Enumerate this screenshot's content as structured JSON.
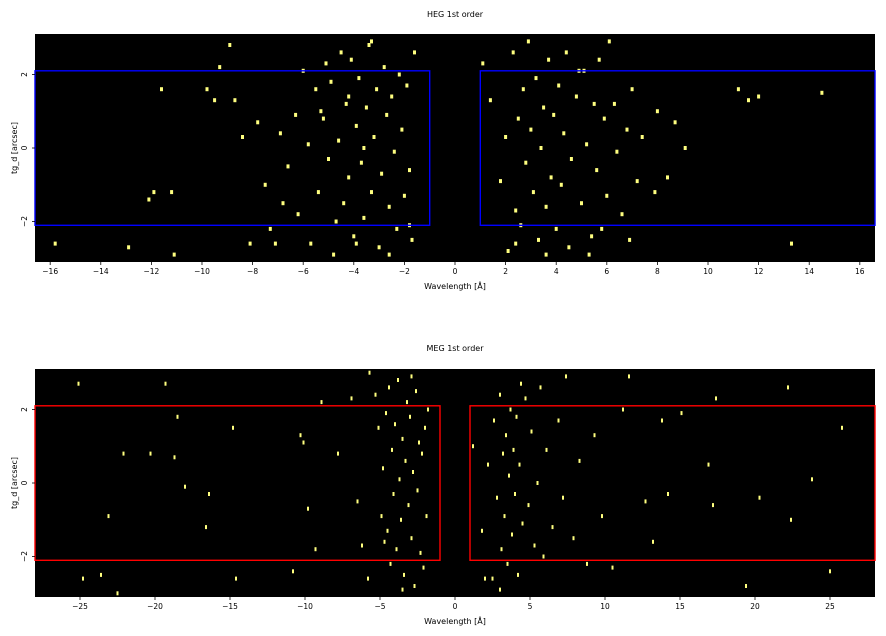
{
  "colors": {
    "background": "#000000",
    "events": "#ffff80",
    "heg_region": "#0000ff",
    "meg_region": "#ff0000"
  },
  "chart_data": [
    {
      "type": "scatter",
      "title": "HEG 1st order",
      "xlabel": "Wavelength [Å]",
      "ylabel": "tg_d [arcsec]",
      "xlim": [
        -16.6,
        16.6
      ],
      "ylim": [
        -3.1,
        3.1
      ],
      "xticks": [
        -16,
        -14,
        -12,
        -10,
        -8,
        -6,
        -4,
        -2,
        0,
        2,
        4,
        6,
        8,
        10,
        12,
        14,
        16
      ],
      "yticks": [
        -2,
        0,
        2
      ],
      "grid": false,
      "region_color": "#0000ff",
      "regions": [
        {
          "x": [
            -16.6,
            -1.0
          ],
          "y": [
            -2.1,
            2.1
          ]
        },
        {
          "x": [
            1.0,
            16.6
          ],
          "y": [
            -2.1,
            2.1
          ]
        }
      ],
      "points": [
        [
          -15.8,
          -2.6
        ],
        [
          -12.9,
          -2.7
        ],
        [
          -12.1,
          -1.4
        ],
        [
          -11.9,
          -1.2
        ],
        [
          -11.6,
          1.6
        ],
        [
          -11.2,
          -1.2
        ],
        [
          -11.1,
          -2.9
        ],
        [
          -8.9,
          2.8
        ],
        [
          -9.8,
          1.6
        ],
        [
          -9.5,
          1.3
        ],
        [
          -9.3,
          2.2
        ],
        [
          -8.7,
          1.3
        ],
        [
          -8.4,
          0.3
        ],
        [
          -8.1,
          -2.6
        ],
        [
          -7.8,
          0.7
        ],
        [
          -7.5,
          -1.0
        ],
        [
          -7.3,
          -2.2
        ],
        [
          -7.1,
          -2.6
        ],
        [
          -6.9,
          0.4
        ],
        [
          -6.8,
          -1.5
        ],
        [
          -6.6,
          -0.5
        ],
        [
          -6.3,
          0.9
        ],
        [
          -6.2,
          -1.8
        ],
        [
          -6.0,
          2.1
        ],
        [
          -5.7,
          -2.6
        ],
        [
          -5.5,
          1.6
        ],
        [
          -5.4,
          -1.2
        ],
        [
          -5.2,
          0.8
        ],
        [
          -5.1,
          2.3
        ],
        [
          -5.0,
          -0.3
        ],
        [
          -4.9,
          1.8
        ],
        [
          -4.7,
          -2.0
        ],
        [
          -4.6,
          0.2
        ],
        [
          -4.5,
          2.6
        ],
        [
          -4.4,
          -1.5
        ],
        [
          -4.3,
          1.2
        ],
        [
          -4.2,
          -0.8
        ],
        [
          -4.1,
          2.4
        ],
        [
          -4.0,
          -2.4
        ],
        [
          -3.9,
          0.6
        ],
        [
          -3.8,
          1.9
        ],
        [
          -3.7,
          -0.4
        ],
        [
          -3.6,
          -1.9
        ],
        [
          -3.5,
          1.1
        ],
        [
          -3.4,
          2.8
        ],
        [
          -3.3,
          -1.2
        ],
        [
          -3.2,
          0.3
        ],
        [
          -3.1,
          1.6
        ],
        [
          -3.0,
          -2.7
        ],
        [
          -2.9,
          -0.7
        ],
        [
          -2.8,
          2.2
        ],
        [
          -2.7,
          0.9
        ],
        [
          -2.6,
          -1.6
        ],
        [
          -2.5,
          1.4
        ],
        [
          -2.4,
          -0.1
        ],
        [
          -2.3,
          -2.2
        ],
        [
          -2.2,
          2.0
        ],
        [
          -2.1,
          0.5
        ],
        [
          -2.0,
          -1.3
        ],
        [
          -1.9,
          1.7
        ],
        [
          -1.8,
          -0.6
        ],
        [
          -1.7,
          -2.5
        ],
        [
          -1.6,
          2.6
        ],
        [
          -5.8,
          0.1
        ],
        [
          -4.8,
          -2.9
        ],
        [
          -3.3,
          2.9
        ],
        [
          -2.6,
          -2.9
        ],
        [
          -4.2,
          1.4
        ],
        [
          -3.6,
          0.0
        ],
        [
          -5.3,
          1.0
        ],
        [
          -1.8,
          -2.1
        ],
        [
          -3.9,
          -2.6
        ],
        [
          1.1,
          2.3
        ],
        [
          1.4,
          1.3
        ],
        [
          1.8,
          -0.9
        ],
        [
          2.0,
          0.3
        ],
        [
          2.1,
          -2.8
        ],
        [
          2.3,
          2.6
        ],
        [
          2.4,
          -1.7
        ],
        [
          2.5,
          0.8
        ],
        [
          2.6,
          -2.1
        ],
        [
          2.7,
          1.6
        ],
        [
          2.8,
          -0.4
        ],
        [
          2.9,
          2.9
        ],
        [
          3.0,
          0.5
        ],
        [
          3.1,
          -1.2
        ],
        [
          3.2,
          1.9
        ],
        [
          3.3,
          -2.5
        ],
        [
          3.4,
          0.0
        ],
        [
          3.5,
          1.1
        ],
        [
          3.6,
          -1.6
        ],
        [
          3.7,
          2.4
        ],
        [
          3.8,
          -0.8
        ],
        [
          3.9,
          0.9
        ],
        [
          4.0,
          -2.2
        ],
        [
          4.1,
          1.7
        ],
        [
          4.2,
          -1.0
        ],
        [
          4.3,
          0.4
        ],
        [
          4.4,
          2.6
        ],
        [
          4.5,
          -2.7
        ],
        [
          4.6,
          -0.3
        ],
        [
          4.8,
          1.4
        ],
        [
          5.0,
          -1.5
        ],
        [
          5.1,
          2.1
        ],
        [
          5.2,
          0.1
        ],
        [
          5.4,
          -2.4
        ],
        [
          5.5,
          1.2
        ],
        [
          5.6,
          -0.6
        ],
        [
          5.7,
          2.4
        ],
        [
          5.8,
          -2.2
        ],
        [
          5.9,
          0.8
        ],
        [
          6.0,
          -1.3
        ],
        [
          6.1,
          2.9
        ],
        [
          6.3,
          1.2
        ],
        [
          6.4,
          -0.1
        ],
        [
          6.6,
          -1.8
        ],
        [
          6.8,
          0.5
        ],
        [
          6.9,
          -2.5
        ],
        [
          7.0,
          1.6
        ],
        [
          7.2,
          -0.9
        ],
        [
          7.4,
          0.3
        ],
        [
          7.9,
          -1.2
        ],
        [
          8.0,
          1.0
        ],
        [
          8.4,
          -0.8
        ],
        [
          8.7,
          0.7
        ],
        [
          9.1,
          0.0
        ],
        [
          11.2,
          1.6
        ],
        [
          11.6,
          1.3
        ],
        [
          12.0,
          1.4
        ],
        [
          13.3,
          -2.6
        ],
        [
          14.5,
          1.5
        ],
        [
          3.6,
          -2.9
        ],
        [
          2.4,
          -2.6
        ],
        [
          5.3,
          -2.9
        ],
        [
          4.9,
          2.1
        ]
      ]
    },
    {
      "type": "scatter",
      "title": "MEG 1st order",
      "xlabel": "Wavelength [Å]",
      "ylabel": "tg_d [arcsec]",
      "xlim": [
        -28,
        28
      ],
      "ylim": [
        -3.1,
        3.1
      ],
      "xticks": [
        -25,
        -20,
        -15,
        -10,
        -5,
        0,
        5,
        10,
        15,
        20,
        25
      ],
      "yticks": [
        -2,
        0,
        2
      ],
      "grid": false,
      "region_color": "#ff0000",
      "regions": [
        {
          "x": [
            -28,
            -1.0
          ],
          "y": [
            -2.1,
            2.1
          ]
        },
        {
          "x": [
            1.0,
            28
          ],
          "y": [
            -2.1,
            2.1
          ]
        }
      ],
      "points": [
        [
          -25.1,
          2.7
        ],
        [
          -24.8,
          -2.6
        ],
        [
          -23.6,
          -2.5
        ],
        [
          -22.5,
          -3.0
        ],
        [
          -23.1,
          -0.9
        ],
        [
          -22.1,
          0.8
        ],
        [
          -20.3,
          0.8
        ],
        [
          -19.3,
          2.7
        ],
        [
          -18.5,
          1.8
        ],
        [
          -18.7,
          0.7
        ],
        [
          -18.0,
          -0.1
        ],
        [
          -16.6,
          -1.2
        ],
        [
          -16.4,
          -0.3
        ],
        [
          -14.8,
          1.5
        ],
        [
          -14.6,
          -2.6
        ],
        [
          -10.8,
          -2.4
        ],
        [
          -10.3,
          1.3
        ],
        [
          -10.1,
          1.1
        ],
        [
          -9.8,
          -0.7
        ],
        [
          -9.3,
          -1.8
        ],
        [
          -8.9,
          2.2
        ],
        [
          -7.8,
          0.8
        ],
        [
          -6.9,
          2.3
        ],
        [
          -6.5,
          -0.5
        ],
        [
          -6.2,
          -1.7
        ],
        [
          -5.8,
          -2.6
        ],
        [
          -5.7,
          3.0
        ],
        [
          -5.3,
          2.4
        ],
        [
          -5.1,
          1.5
        ],
        [
          -4.9,
          -0.9
        ],
        [
          -4.8,
          0.4
        ],
        [
          -4.6,
          1.9
        ],
        [
          -4.5,
          -1.3
        ],
        [
          -4.4,
          2.6
        ],
        [
          -4.3,
          -2.2
        ],
        [
          -4.2,
          0.9
        ],
        [
          -4.1,
          -0.3
        ],
        [
          -4.0,
          1.6
        ],
        [
          -3.9,
          -1.8
        ],
        [
          -3.8,
          2.8
        ],
        [
          -3.7,
          0.1
        ],
        [
          -3.6,
          -1.0
        ],
        [
          -3.5,
          1.2
        ],
        [
          -3.4,
          -2.5
        ],
        [
          -3.3,
          0.6
        ],
        [
          -3.2,
          2.2
        ],
        [
          -3.1,
          -0.6
        ],
        [
          -3.0,
          1.8
        ],
        [
          -2.9,
          -1.5
        ],
        [
          -2.8,
          0.3
        ],
        [
          -2.7,
          -2.8
        ],
        [
          -2.6,
          2.5
        ],
        [
          -2.5,
          -0.2
        ],
        [
          -2.4,
          1.1
        ],
        [
          -2.3,
          -1.9
        ],
        [
          -2.2,
          0.8
        ],
        [
          -2.1,
          -2.3
        ],
        [
          -2.0,
          1.5
        ],
        [
          -1.9,
          -0.9
        ],
        [
          -1.8,
          2.0
        ],
        [
          -3.5,
          -2.9
        ],
        [
          -4.7,
          -1.6
        ],
        [
          -2.9,
          2.9
        ],
        [
          1.2,
          1.0
        ],
        [
          1.8,
          -1.3
        ],
        [
          2.2,
          0.5
        ],
        [
          2.5,
          -2.6
        ],
        [
          2.6,
          1.7
        ],
        [
          2.8,
          -0.4
        ],
        [
          3.0,
          2.4
        ],
        [
          3.1,
          -1.8
        ],
        [
          3.2,
          0.8
        ],
        [
          3.3,
          -0.9
        ],
        [
          3.4,
          1.3
        ],
        [
          3.5,
          -2.2
        ],
        [
          3.6,
          0.2
        ],
        [
          3.7,
          2.0
        ],
        [
          3.8,
          -1.4
        ],
        [
          3.9,
          0.9
        ],
        [
          4.0,
          -0.3
        ],
        [
          4.1,
          1.8
        ],
        [
          4.2,
          -2.5
        ],
        [
          4.3,
          0.5
        ],
        [
          4.5,
          -1.1
        ],
        [
          4.7,
          2.3
        ],
        [
          4.9,
          -0.6
        ],
        [
          5.1,
          1.4
        ],
        [
          5.3,
          -1.7
        ],
        [
          5.5,
          0.0
        ],
        [
          5.7,
          2.6
        ],
        [
          5.9,
          -2.0
        ],
        [
          6.1,
          0.9
        ],
        [
          6.5,
          -1.2
        ],
        [
          6.9,
          1.7
        ],
        [
          7.2,
          -0.4
        ],
        [
          7.4,
          2.9
        ],
        [
          7.9,
          -1.5
        ],
        [
          8.3,
          0.6
        ],
        [
          8.8,
          -2.2
        ],
        [
          9.3,
          1.3
        ],
        [
          9.8,
          -0.9
        ],
        [
          10.5,
          -2.3
        ],
        [
          11.2,
          2.0
        ],
        [
          11.6,
          2.9
        ],
        [
          12.7,
          -0.5
        ],
        [
          13.2,
          -1.6
        ],
        [
          13.8,
          1.7
        ],
        [
          14.2,
          -0.3
        ],
        [
          15.1,
          1.9
        ],
        [
          16.9,
          0.5
        ],
        [
          17.2,
          -0.6
        ],
        [
          17.4,
          2.3
        ],
        [
          19.4,
          -2.8
        ],
        [
          20.3,
          -0.4
        ],
        [
          22.2,
          2.6
        ],
        [
          22.4,
          -1.0
        ],
        [
          23.8,
          0.1
        ],
        [
          25.0,
          -2.4
        ],
        [
          25.8,
          1.5
        ],
        [
          3.0,
          -2.9
        ],
        [
          4.4,
          2.7
        ],
        [
          2.0,
          -2.6
        ]
      ]
    }
  ]
}
